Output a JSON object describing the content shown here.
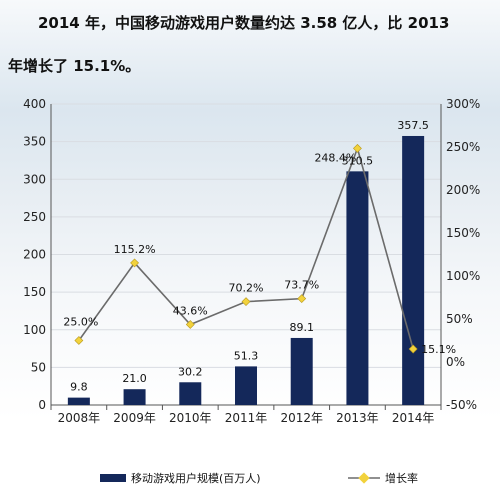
{
  "caption": {
    "line1": "2014 年，中国移动游戏用户数量约达 3.58 亿人，比 2013",
    "line2": "年增长了 15.1%。"
  },
  "colors": {
    "bar": "#14285a",
    "line": "#6b6b6b",
    "marker": "#f2d23c"
  },
  "chart_data": {
    "type": "bar",
    "categories": [
      "2008年",
      "2009年",
      "2010年",
      "2011年",
      "2012年",
      "2013年",
      "2014年"
    ],
    "series": [
      {
        "name": "移动游戏用户规模(百万人)",
        "type": "bar",
        "axis": "left",
        "values": [
          9.8,
          21.0,
          30.2,
          51.3,
          89.1,
          310.5,
          357.5
        ],
        "labels": [
          "9.8",
          "21.0",
          "30.2",
          "51.3",
          "89.1",
          "310.5",
          "357.5"
        ]
      },
      {
        "name": "增长率",
        "type": "line",
        "axis": "right",
        "values": [
          25.0,
          115.2,
          43.6,
          70.2,
          73.7,
          248.4,
          15.1
        ],
        "labels": [
          "25.0%",
          "115.2%",
          "43.6%",
          "70.2%",
          "73.7%",
          "248.4%",
          "15.1%"
        ]
      }
    ],
    "ylim": [
      0,
      400
    ],
    "yticks": [
      "0",
      "50",
      "100",
      "150",
      "200",
      "250",
      "300",
      "350",
      "400"
    ],
    "y2lim": [
      -50,
      300
    ],
    "y2ticks": [
      "-50%",
      "0%",
      "50%",
      "100%",
      "150%",
      "200%",
      "250%",
      "300%"
    ],
    "legend_position": "bottom"
  }
}
